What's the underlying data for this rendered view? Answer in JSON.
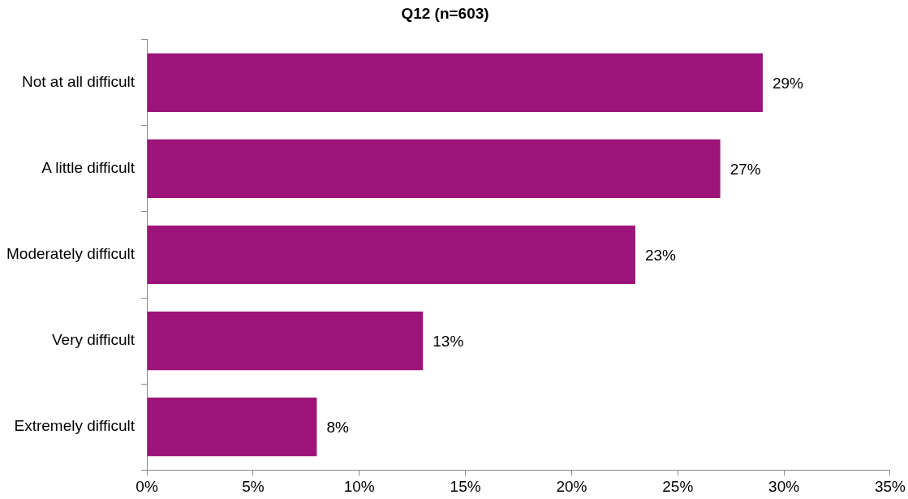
{
  "chart_data": {
    "type": "bar",
    "orientation": "horizontal",
    "title": "Q12 (n=603)",
    "categories": [
      "Not at all difficult",
      "A little difficult",
      "Moderately difficult",
      "Very difficult",
      "Extremely difficult"
    ],
    "values": [
      29,
      27,
      23,
      13,
      8
    ],
    "color": "#9c1379",
    "value_labels": [
      "29%",
      "27%",
      "23%",
      "13%",
      "8%"
    ],
    "xlim": [
      0,
      35
    ],
    "xticks": [
      {
        "value": 0,
        "label": "0%"
      },
      {
        "value": 5,
        "label": "5%"
      },
      {
        "value": 10,
        "label": "10%"
      },
      {
        "value": 15,
        "label": "15%"
      },
      {
        "value": 20,
        "label": "20%"
      },
      {
        "value": 25,
        "label": "25%"
      },
      {
        "value": 30,
        "label": "30%"
      },
      {
        "value": 35,
        "label": "35%"
      }
    ],
    "grid": false,
    "legend": false
  }
}
